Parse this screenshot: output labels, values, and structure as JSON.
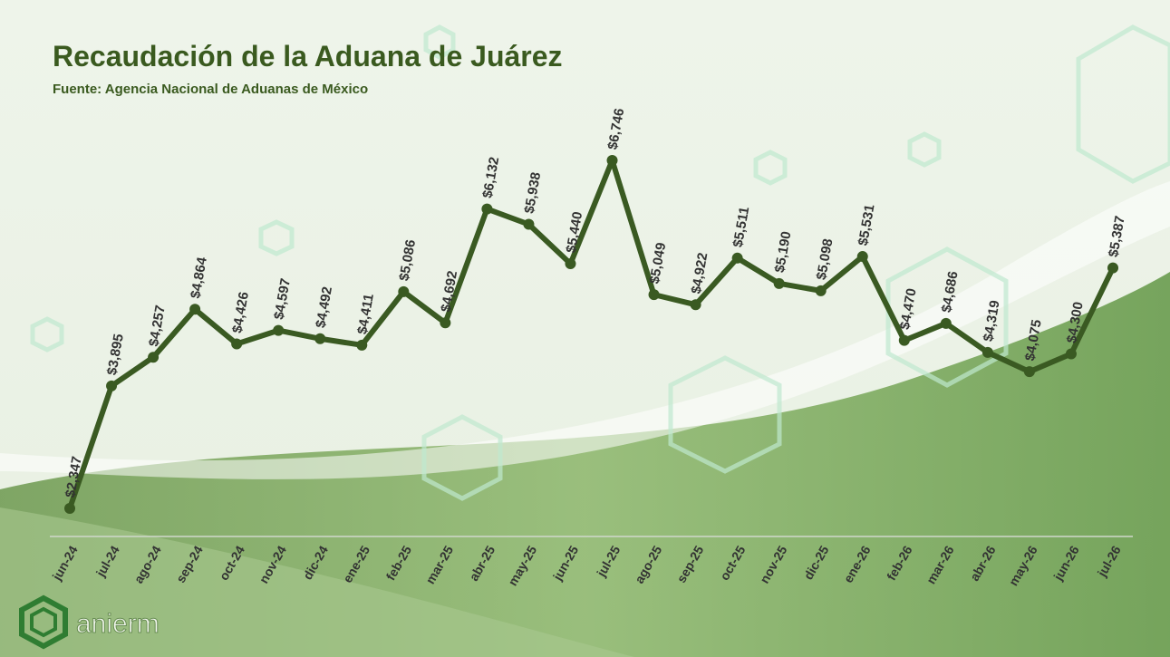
{
  "chart_data": {
    "type": "line",
    "title": "Recaudación de la Aduana de Juárez",
    "subtitle": "Fuente: Agencia Nacional de Aduanas de México",
    "categories": [
      "jun-24",
      "jul-24",
      "ago-24",
      "sep-24",
      "oct-24",
      "nov-24",
      "dic-24",
      "ene-25",
      "feb-25",
      "mar-25",
      "abr-25",
      "may-25",
      "jun-25",
      "jul-25",
      "ago-25",
      "sep-25",
      "oct-25",
      "nov-25",
      "dic-25",
      "ene-26",
      "feb-26",
      "mar-26",
      "abr-26",
      "may-26",
      "jun-26",
      "jul-26"
    ],
    "values": [
      2347,
      3895,
      4257,
      4864,
      4426,
      4597,
      4492,
      4411,
      5086,
      4692,
      6132,
      5938,
      5440,
      6746,
      5049,
      4922,
      5511,
      5190,
      5098,
      5531,
      4470,
      4686,
      4319,
      4075,
      4300,
      5387
    ],
    "value_labels": [
      "$2,347",
      "$3,895",
      "$4,257",
      "$4,864",
      "$4,426",
      "$4,597",
      "$4,492",
      "$4,411",
      "$5,086",
      "$4,692",
      "$6,132",
      "$5,938",
      "$5,440",
      "$6,746",
      "$5,049",
      "$4,922",
      "$5,511",
      "$5,190",
      "$5,098",
      "$5,531",
      "$4,470",
      "$4,686",
      "$4,319",
      "$4,075",
      "$4,300",
      "$5,387"
    ],
    "color": "#3a5a22"
  },
  "logo": {
    "text": "anierm"
  }
}
